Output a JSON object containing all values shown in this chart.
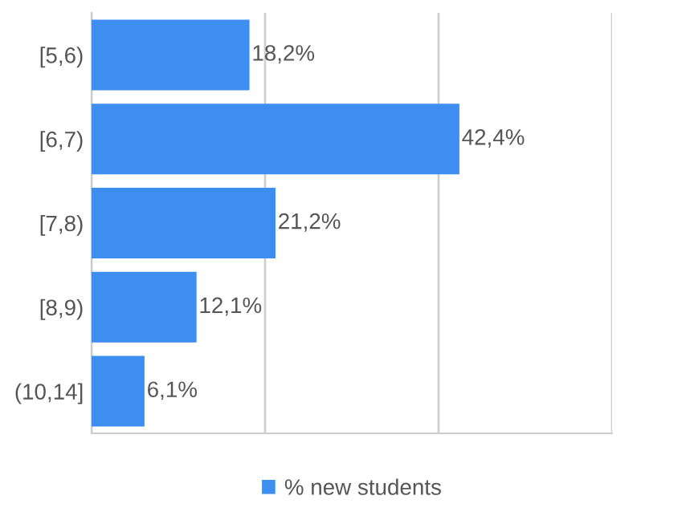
{
  "chart_data": {
    "type": "bar",
    "orientation": "horizontal",
    "categories": [
      "[5,6)",
      "[6,7)",
      "[7,8)",
      "[8,9)",
      "(10,14]"
    ],
    "series": [
      {
        "name": "% new students",
        "color": "#3d8ef0",
        "values": [
          18.2,
          42.4,
          21.2,
          12.1,
          6.1
        ],
        "value_labels": [
          "18,2%",
          "42,4%",
          "21,2%",
          "12,1%",
          "6,1%"
        ]
      }
    ],
    "xlim": [
      0,
      60
    ],
    "xticks": [
      {
        "value": 0,
        "label": null
      },
      {
        "value": 20,
        "label": null
      },
      {
        "value": 40,
        "label": null
      },
      {
        "value": 60,
        "label": null
      }
    ],
    "tick_labels": "y",
    "grid": "x",
    "legend": "bottom"
  }
}
